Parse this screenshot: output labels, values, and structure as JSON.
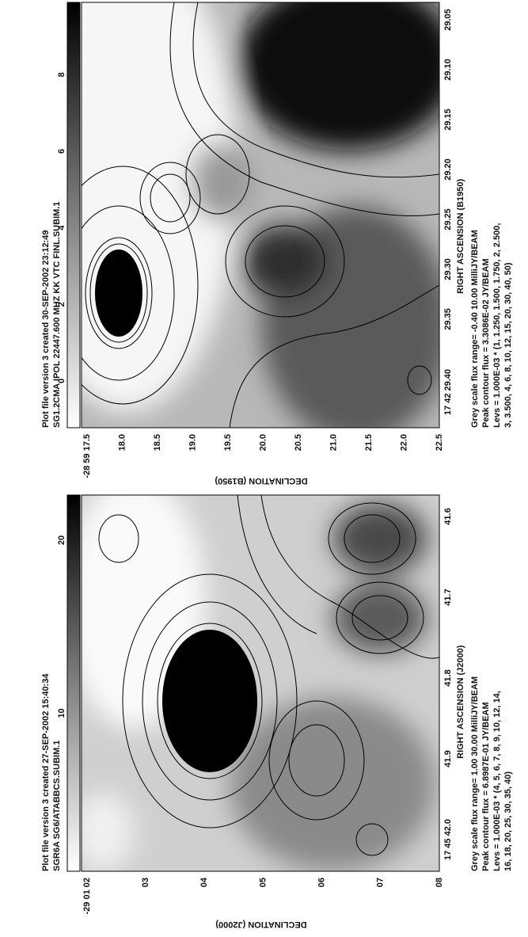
{
  "plots": [
    {
      "header": [
        "Plot file version 3  created 30-SEP-2002 23:12:49",
        "SG1.2CMA  IPOL   22447.600 MHZ  KK VTC FINL.SUBIM.1"
      ],
      "wedge_ticks": [
        "0",
        "2",
        "4",
        "6",
        "8"
      ],
      "ra_ticks": [
        "29.05",
        "29.10",
        "29.15",
        "29.20",
        "29.25",
        "29.30",
        "29.35",
        "17 42 29.40"
      ],
      "dec_ticks": [
        "-28 59 17.5",
        "18.0",
        "18.5",
        "19.0",
        "19.5",
        "20.0",
        "20.5",
        "21.0",
        "21.5",
        "22.0",
        "22.5"
      ],
      "x_label": "RIGHT ASCENSION (B1950)",
      "y_label": "DECLINATION (B1950)",
      "footer": [
        "Grey scale flux range= -0.40 10.00 MilliJY/BEAM",
        "Peak contour flux = 3.3086E-02 JY/BEAM",
        "Levs = 1.000E-03 * (1, 1.250, 1.500, 1.750, 2, 2.500,",
        "3, 3.500, 4, 6, 8, 10, 12, 15, 20, 30, 40, 50)"
      ]
    },
    {
      "header": [
        "Plot file version 3  created 27-SEP-2002 15:40:34",
        "SGR6A   SG6/ATABBCS.SUBIM.1"
      ],
      "wedge_ticks": [
        "10",
        "20"
      ],
      "ra_ticks": [
        "17 45 42.0",
        "41.9",
        "41.8",
        "41.7",
        "41.6"
      ],
      "dec_ticks": [
        "-29 01 02",
        "03",
        "04",
        "05",
        "06",
        "07",
        "08"
      ],
      "x_label": "RIGHT ASCENSION (J2000)",
      "y_label": "DECLINATION (J2000)",
      "footer": [
        "Grey scale flux range= 1.00 30.00 MilliJY/BEAM",
        "Peak contour flux = 6.8987E-01 JY/BEAM",
        "Levs = 1.000E-03 * (4, 5, 6, 7, 8, 9, 10, 12, 14,",
        "16, 18, 20, 25, 30, 35, 40)"
      ]
    }
  ]
}
